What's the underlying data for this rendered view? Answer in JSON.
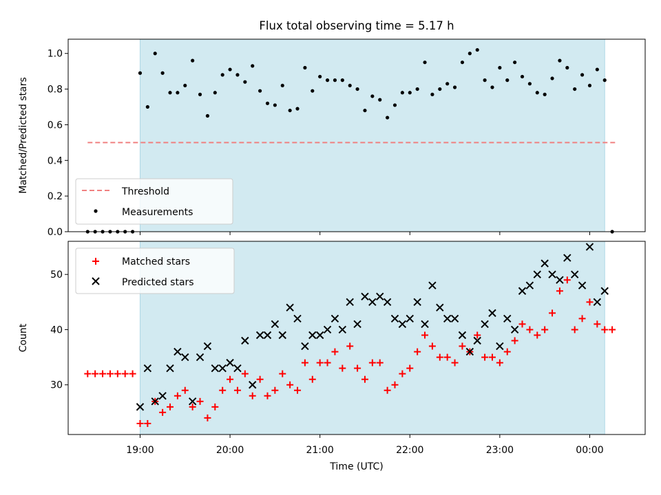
{
  "title": "Flux total observing time = 5.17 h",
  "colors": {
    "shade": "#add8e6",
    "threshold": "#f08080",
    "measurement": "#000000",
    "matched": "#ff0000",
    "predicted": "#000000"
  },
  "chart_data": [
    {
      "type": "scatter",
      "ylabel": "Matched/Predicted stars",
      "ylim": [
        0,
        1.08
      ],
      "yticks": [
        0.0,
        0.2,
        0.4,
        0.6,
        0.8,
        1.0
      ],
      "ytick_labels": [
        "0.0",
        "0.2",
        "0.4",
        "0.6",
        "0.8",
        "1.0"
      ],
      "shaded_span": [
        "19:00",
        "00:10"
      ],
      "legend_position": "lower-left",
      "threshold": {
        "name": "Threshold",
        "value": 0.5,
        "x_start": "18:25",
        "x_end": "00:17"
      },
      "series": [
        {
          "name": "Measurements",
          "x": [
            "18:25",
            "18:30",
            "18:35",
            "18:40",
            "18:45",
            "18:50",
            "18:55",
            "19:00",
            "19:05",
            "19:10",
            "19:15",
            "19:20",
            "19:25",
            "19:30",
            "19:35",
            "19:40",
            "19:45",
            "19:50",
            "19:55",
            "20:00",
            "20:05",
            "20:10",
            "20:15",
            "20:20",
            "20:25",
            "20:30",
            "20:35",
            "20:40",
            "20:45",
            "20:50",
            "20:55",
            "21:00",
            "21:05",
            "21:10",
            "21:15",
            "21:20",
            "21:25",
            "21:30",
            "21:35",
            "21:40",
            "21:45",
            "21:50",
            "21:55",
            "22:00",
            "22:05",
            "22:10",
            "22:15",
            "22:20",
            "22:25",
            "22:30",
            "22:35",
            "22:40",
            "22:45",
            "22:50",
            "22:55",
            "23:00",
            "23:05",
            "23:10",
            "23:15",
            "23:20",
            "23:25",
            "23:30",
            "23:35",
            "23:40",
            "23:45",
            "23:50",
            "23:55",
            "00:00",
            "00:05",
            "00:10",
            "00:15"
          ],
          "y": [
            0,
            0,
            0,
            0,
            0,
            0,
            0,
            0.89,
            0.7,
            1.0,
            0.89,
            0.78,
            0.78,
            0.82,
            0.96,
            0.77,
            0.65,
            0.78,
            0.88,
            0.91,
            0.88,
            0.84,
            0.93,
            0.79,
            0.72,
            0.71,
            0.82,
            0.68,
            0.69,
            0.92,
            0.79,
            0.87,
            0.85,
            0.85,
            0.85,
            0.82,
            0.8,
            0.68,
            0.76,
            0.74,
            0.64,
            0.71,
            0.78,
            0.78,
            0.8,
            0.95,
            0.77,
            0.8,
            0.83,
            0.81,
            0.95,
            1.0,
            1.02,
            0.85,
            0.81,
            0.92,
            0.85,
            0.95,
            0.87,
            0.83,
            0.78,
            0.77,
            0.86,
            0.96,
            0.92,
            0.8,
            0.88,
            0.82,
            0.91,
            0.85,
            0
          ]
        }
      ]
    },
    {
      "type": "scatter",
      "xlabel": "Time (UTC)",
      "ylabel": "Count",
      "ylim": [
        21,
        56
      ],
      "yticks": [
        30,
        40,
        50
      ],
      "ytick_labels": [
        "30",
        "40",
        "50"
      ],
      "xticks": [
        "19:00",
        "20:00",
        "21:00",
        "22:00",
        "23:00",
        "00:00"
      ],
      "xtick_labels": [
        "19:00",
        "20:00",
        "21:00",
        "22:00",
        "23:00",
        "00:00"
      ],
      "shaded_span": [
        "19:00",
        "00:10"
      ],
      "legend_position": "upper-left",
      "series": [
        {
          "name": "Matched stars",
          "x": [
            "18:25",
            "18:30",
            "18:35",
            "18:40",
            "18:45",
            "18:50",
            "18:55",
            "19:00",
            "19:05",
            "19:10",
            "19:15",
            "19:20",
            "19:25",
            "19:30",
            "19:35",
            "19:40",
            "19:45",
            "19:50",
            "19:55",
            "20:00",
            "20:05",
            "20:10",
            "20:15",
            "20:20",
            "20:25",
            "20:30",
            "20:35",
            "20:40",
            "20:45",
            "20:50",
            "20:55",
            "21:00",
            "21:05",
            "21:10",
            "21:15",
            "21:20",
            "21:25",
            "21:30",
            "21:35",
            "21:40",
            "21:45",
            "21:50",
            "21:55",
            "22:00",
            "22:05",
            "22:10",
            "22:15",
            "22:20",
            "22:25",
            "22:30",
            "22:35",
            "22:40",
            "22:45",
            "22:50",
            "22:55",
            "23:00",
            "23:05",
            "23:10",
            "23:15",
            "23:20",
            "23:25",
            "23:30",
            "23:35",
            "23:40",
            "23:45",
            "23:50",
            "23:55",
            "00:00",
            "00:05",
            "00:10",
            "00:15"
          ],
          "y": [
            32,
            32,
            32,
            32,
            32,
            32,
            32,
            23,
            23,
            27,
            25,
            26,
            28,
            29,
            26,
            27,
            24,
            26,
            29,
            31,
            29,
            32,
            28,
            31,
            28,
            29,
            32,
            30,
            29,
            34,
            31,
            34,
            34,
            36,
            33,
            37,
            33,
            31,
            34,
            34,
            29,
            30,
            32,
            33,
            36,
            39,
            37,
            35,
            35,
            34,
            37,
            36,
            39,
            35,
            35,
            34,
            36,
            38,
            41,
            40,
            39,
            40,
            43,
            47,
            49,
            40,
            42,
            45,
            41,
            40,
            40
          ]
        },
        {
          "name": "Predicted stars",
          "x": [
            "19:00",
            "19:05",
            "19:10",
            "19:15",
            "19:20",
            "19:25",
            "19:30",
            "19:35",
            "19:40",
            "19:45",
            "19:50",
            "19:55",
            "20:00",
            "20:05",
            "20:10",
            "20:15",
            "20:20",
            "20:25",
            "20:30",
            "20:35",
            "20:40",
            "20:45",
            "20:50",
            "20:55",
            "21:00",
            "21:05",
            "21:10",
            "21:15",
            "21:20",
            "21:25",
            "21:30",
            "21:35",
            "21:40",
            "21:45",
            "21:50",
            "21:55",
            "22:00",
            "22:05",
            "22:10",
            "22:15",
            "22:20",
            "22:25",
            "22:30",
            "22:35",
            "22:40",
            "22:45",
            "22:50",
            "22:55",
            "23:00",
            "23:05",
            "23:10",
            "23:15",
            "23:20",
            "23:25",
            "23:30",
            "23:35",
            "23:40",
            "23:45",
            "23:50",
            "23:55",
            "00:00",
            "00:05",
            "00:10"
          ],
          "y": [
            26,
            33,
            27,
            28,
            33,
            36,
            35,
            27,
            35,
            37,
            33,
            33,
            34,
            33,
            38,
            30,
            39,
            39,
            41,
            39,
            44,
            42,
            37,
            39,
            39,
            40,
            42,
            40,
            45,
            41,
            46,
            45,
            46,
            45,
            42,
            41,
            42,
            45,
            41,
            48,
            44,
            42,
            42,
            39,
            36,
            38,
            41,
            43,
            37,
            42,
            40,
            47,
            48,
            50,
            52,
            50,
            49,
            53,
            50,
            48,
            55,
            45,
            47
          ]
        }
      ]
    }
  ]
}
